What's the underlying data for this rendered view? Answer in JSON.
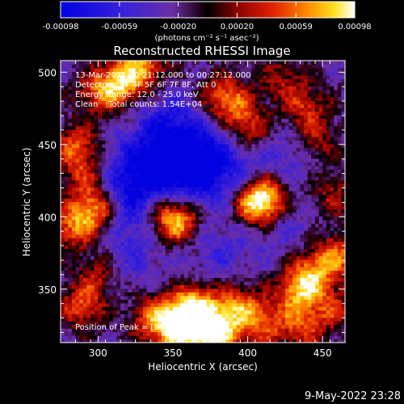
{
  "chart_data": {
    "type": "heatmap",
    "title": "Reconstructed RHESSI Image",
    "xlabel": "Heliocentric X (arcsec)",
    "ylabel": "Heliocentric Y (arcsec)",
    "xlim": [
      275,
      465
    ],
    "ylim": [
      313,
      508
    ],
    "xticks": [
      300,
      350,
      400,
      450
    ],
    "yticks": [
      350,
      400,
      450,
      500
    ],
    "colorbar": {
      "colormap": "blue-purple-red-yellow-white",
      "min": -0.00098,
      "max": 0.00098,
      "ticks": [
        "-0.00098",
        "-0.00059",
        "-0.00020",
        "0.00020",
        "0.00059",
        "0.00098"
      ],
      "label": "(photons cm⁻² s⁻¹ asec⁻²)"
    },
    "annotations": [
      "13-Mar-2011 00:21:12.000 to 00:27:12.000",
      "Detectors: 3F 4F 5F 6F 7F 8F, Att 0",
      "Energy Range: 12.0 - 25.0 keV",
      "Clean    Total counts: 1.54E+04"
    ],
    "peak_label": "Position of Peak = [367,323]",
    "peak": [
      367,
      323
    ],
    "hotspots": [
      {
        "x": 315,
        "y": 492,
        "v": 0.85
      },
      {
        "x": 330,
        "y": 505,
        "v": 0.7
      },
      {
        "x": 300,
        "y": 485,
        "v": 0.6
      },
      {
        "x": 284,
        "y": 448,
        "v": 0.65
      },
      {
        "x": 290,
        "y": 427,
        "v": 0.55
      },
      {
        "x": 298,
        "y": 405,
        "v": 0.95
      },
      {
        "x": 282,
        "y": 392,
        "v": 0.7
      },
      {
        "x": 288,
        "y": 338,
        "v": 0.65
      },
      {
        "x": 300,
        "y": 360,
        "v": 0.45
      },
      {
        "x": 352,
        "y": 395,
        "v": 0.75
      },
      {
        "x": 345,
        "y": 402,
        "v": 0.55
      },
      {
        "x": 382,
        "y": 482,
        "v": 0.7
      },
      {
        "x": 395,
        "y": 470,
        "v": 0.45
      },
      {
        "x": 400,
        "y": 455,
        "v": 0.55
      },
      {
        "x": 405,
        "y": 407,
        "v": 1.0
      },
      {
        "x": 412,
        "y": 415,
        "v": 0.65
      },
      {
        "x": 437,
        "y": 474,
        "v": 0.55
      },
      {
        "x": 445,
        "y": 450,
        "v": 0.5
      },
      {
        "x": 455,
        "y": 415,
        "v": 0.45
      },
      {
        "x": 458,
        "y": 372,
        "v": 0.75
      },
      {
        "x": 440,
        "y": 358,
        "v": 0.75
      },
      {
        "x": 432,
        "y": 345,
        "v": 0.65
      },
      {
        "x": 392,
        "y": 338,
        "v": 0.7
      },
      {
        "x": 362,
        "y": 338,
        "v": 0.85
      },
      {
        "x": 367,
        "y": 323,
        "v": 1.0
      },
      {
        "x": 350,
        "y": 322,
        "v": 0.95
      },
      {
        "x": 335,
        "y": 330,
        "v": 0.6
      },
      {
        "x": 380,
        "y": 318,
        "v": 0.8
      },
      {
        "x": 408,
        "y": 325,
        "v": 0.6
      },
      {
        "x": 435,
        "y": 322,
        "v": 0.55
      },
      {
        "x": 456,
        "y": 335,
        "v": 0.45
      },
      {
        "x": 422,
        "y": 495,
        "v": 0.4
      }
    ],
    "coldspots": [
      {
        "x": 348,
        "y": 462,
        "v": -0.5
      },
      {
        "x": 360,
        "y": 440,
        "v": -0.55
      },
      {
        "x": 330,
        "y": 440,
        "v": -0.4
      },
      {
        "x": 375,
        "y": 428,
        "v": -0.45
      },
      {
        "x": 345,
        "y": 425,
        "v": -0.45
      },
      {
        "x": 320,
        "y": 405,
        "v": -0.4
      },
      {
        "x": 310,
        "y": 422,
        "v": -0.35
      },
      {
        "x": 395,
        "y": 445,
        "v": -0.35
      },
      {
        "x": 320,
        "y": 370,
        "v": -0.3
      },
      {
        "x": 380,
        "y": 375,
        "v": -0.3
      },
      {
        "x": 420,
        "y": 395,
        "v": -0.25
      },
      {
        "x": 430,
        "y": 440,
        "v": -0.3
      }
    ]
  },
  "footer": {
    "timestamp": "9-May-2022 23:28"
  }
}
